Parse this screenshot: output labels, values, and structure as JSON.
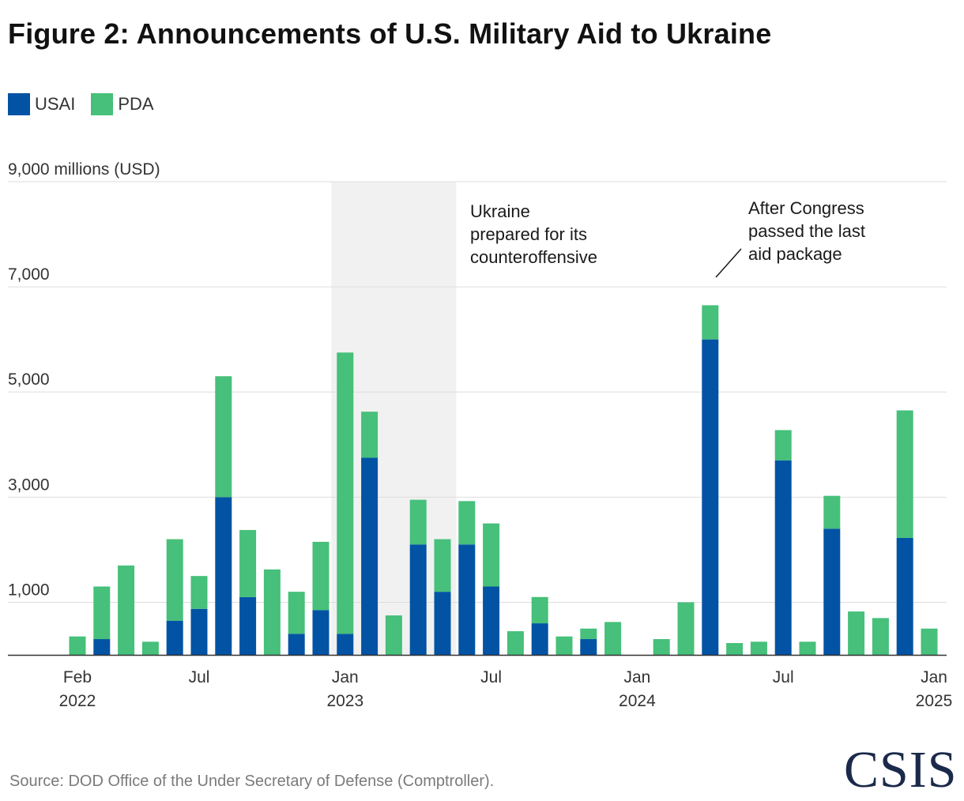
{
  "title": "Figure 2: Announcements of U.S. Military Aid to Ukraine",
  "source": "Source: DOD Office of the Under Secretary of Defense (Comptroller).",
  "logo": "CSIS",
  "colors": {
    "USAI": "#0353a4",
    "PDA": "#46c07a",
    "shade": "#f1f1f1",
    "grid": "#dddddd",
    "axis": "#333333"
  },
  "chart_data": {
    "type": "bar",
    "stacked": true,
    "title": "Figure 2: Announcements of U.S. Military Aid to Ukraine",
    "ylabel": "9,000 millions (USD)",
    "ylim": [
      0,
      9000
    ],
    "yticks": [
      {
        "value": 1000,
        "label": "1,000"
      },
      {
        "value": 3000,
        "label": "3,000"
      },
      {
        "value": 5000,
        "label": "5,000"
      },
      {
        "value": 7000,
        "label": "7,000"
      },
      {
        "value": 9000,
        "label": "9,000 millions (USD)"
      }
    ],
    "gridlines": true,
    "legend": [
      {
        "name": "USAI",
        "color": "#0353a4"
      },
      {
        "name": "PDA",
        "color": "#46c07a"
      }
    ],
    "categories": [
      "Feb 2022",
      "Mar 2022",
      "Apr 2022",
      "May 2022",
      "Jun 2022",
      "Jul 2022",
      "Aug 2022",
      "Sep 2022",
      "Oct 2022",
      "Nov 2022",
      "Dec 2022",
      "Jan 2023",
      "Feb 2023",
      "Mar 2023",
      "Apr 2023",
      "May 2023",
      "Jun 2023",
      "Jul 2023",
      "Aug 2023",
      "Sep 2023",
      "Oct 2023",
      "Nov 2023",
      "Dec 2023",
      "Jan 2024",
      "Feb 2024",
      "Mar 2024",
      "Apr 2024",
      "May 2024",
      "Jun 2024",
      "Jul 2024",
      "Aug 2024",
      "Sep 2024",
      "Oct 2024",
      "Nov 2024",
      "Dec 2024",
      "Jan 2025"
    ],
    "series": [
      {
        "name": "USAI",
        "values": [
          0,
          300,
          0,
          0,
          650,
          875,
          3000,
          1100,
          0,
          400,
          850,
          400,
          3750,
          0,
          2100,
          1200,
          2100,
          1300,
          0,
          600,
          0,
          300,
          0,
          0,
          0,
          0,
          6000,
          0,
          0,
          3700,
          0,
          2400,
          0,
          0,
          2225,
          0
        ]
      },
      {
        "name": "PDA",
        "values": [
          350,
          1000,
          1700,
          250,
          1550,
          625,
          2300,
          1275,
          1625,
          800,
          1300,
          5350,
          875,
          750,
          850,
          1000,
          825,
          1200,
          450,
          500,
          350,
          200,
          625,
          0,
          300,
          1000,
          650,
          225,
          250,
          575,
          250,
          625,
          825,
          700,
          2425,
          500
        ]
      }
    ],
    "x_labels": [
      {
        "category_index": 0,
        "month": "Feb",
        "year": "2022"
      },
      {
        "category_index": 5,
        "month": "Jul",
        "year": ""
      },
      {
        "category_index": 11,
        "month": "Jan",
        "year": "2023"
      },
      {
        "category_index": 17,
        "month": "Jul",
        "year": ""
      },
      {
        "category_index": 23,
        "month": "Jan",
        "year": "2024"
      },
      {
        "category_index": 29,
        "month": "Jul",
        "year": ""
      },
      {
        "category_index": 35,
        "month": "Jan",
        "year": "2025"
      }
    ],
    "shaded_range": {
      "from_category": 11,
      "to_category": 15
    },
    "annotations": [
      {
        "name": "counteroffensive-annotation",
        "lines": [
          "Ukraine",
          "prepared for its",
          "counteroffensive"
        ]
      },
      {
        "name": "congress-annotation",
        "lines": [
          "After Congress",
          "passed the last",
          "aid package"
        ],
        "points_to_category": 26
      }
    ]
  }
}
